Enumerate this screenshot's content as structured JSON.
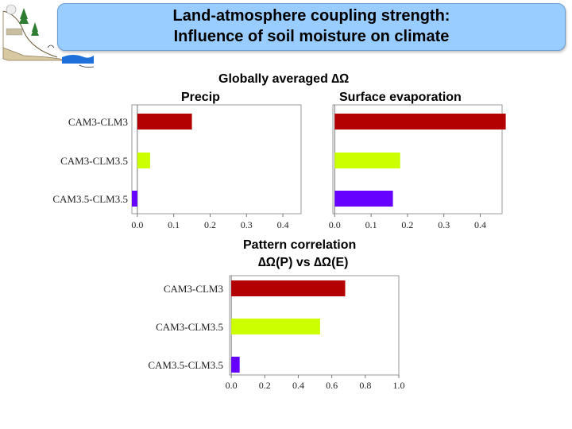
{
  "header": {
    "title_line1": "Land-atmosphere coupling strength:",
    "title_line2": "Influence of soil moisture on climate"
  },
  "colors": {
    "title_bg": "#99ccff",
    "dark_red": "#b30000",
    "lime": "#ccff00",
    "violet": "#6600ff"
  },
  "section1": {
    "title_main": "Globally averaged ∆Ω",
    "label_left": "Precip",
    "label_right": "Surface evaporation"
  },
  "section2": {
    "title1": "Pattern correlation",
    "title2": "∆Ω(P) vs ∆Ω(E)"
  },
  "chart_data": [
    {
      "type": "bar",
      "orientation": "horizontal",
      "title": "Precip",
      "categories": [
        "CAM3-CLM3",
        "CAM3-CLM3.5",
        "CAM3.5-CLM3.5"
      ],
      "values": [
        0.15,
        0.035,
        -0.015
      ],
      "colors": [
        "#b30000",
        "#ccff00",
        "#6600ff"
      ],
      "xlim": [
        -0.015,
        0.45
      ],
      "xticks": [
        "0.0",
        "0.1",
        "0.2",
        "0.3",
        "0.4"
      ]
    },
    {
      "type": "bar",
      "orientation": "horizontal",
      "title": "Surface evaporation",
      "categories": [
        "CAM3-CLM3",
        "CAM3-CLM3.5",
        "CAM3.5-CLM3.5"
      ],
      "values": [
        0.47,
        0.18,
        0.16
      ],
      "colors": [
        "#b30000",
        "#ccff00",
        "#6600ff"
      ],
      "xlim": [
        -0.005,
        0.46
      ],
      "xticks": [
        "0.0",
        "0.1",
        "0.2",
        "0.3",
        "0.4"
      ]
    },
    {
      "type": "bar",
      "orientation": "horizontal",
      "title": "Pattern correlation",
      "categories": [
        "CAM3-CLM3",
        "CAM3-CLM3.5",
        "CAM3.5-CLM3.5"
      ],
      "values": [
        0.68,
        0.53,
        0.05
      ],
      "colors": [
        "#b30000",
        "#ccff00",
        "#6600ff"
      ],
      "xlim": [
        -0.01,
        1.0
      ],
      "xticks": [
        "0.0",
        "0.2",
        "0.4",
        "0.6",
        "0.8",
        "1.0"
      ]
    }
  ]
}
